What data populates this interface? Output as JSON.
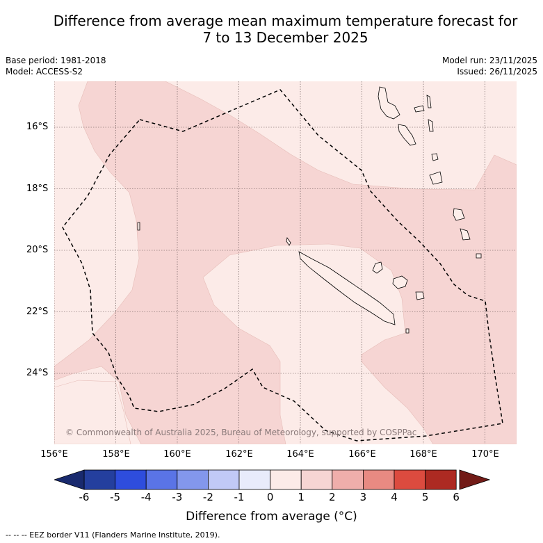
{
  "title_line1": "Difference from average mean maximum temperature forecast for",
  "title_line2": "7 to 13 December 2025",
  "base_period": "Base period: 1981-2018",
  "model": "Model: ACCESS-S2",
  "model_run": "Model run: 23/11/2025",
  "issued": "Issued: 26/11/2025",
  "lat_labels": [
    "16°S",
    "18°S",
    "20°S",
    "22°S",
    "24°S"
  ],
  "lon_labels": [
    "156°E",
    "158°E",
    "160°E",
    "162°E",
    "164°E",
    "166°E",
    "168°E",
    "170°E"
  ],
  "copyright": "© Commonwealth of Australia 2025, Bureau of Meteorology, supported by COSPPac",
  "colorbar": {
    "ticks": [
      "-6",
      "-5",
      "-4",
      "-3",
      "-2",
      "-1",
      "0",
      "1",
      "2",
      "3",
      "4",
      "5",
      "6"
    ],
    "colors": [
      "#243f9e",
      "#2e4ddd",
      "#5a74e6",
      "#8397ec",
      "#c1c9f6",
      "#e8ebfb",
      "#fcebe8",
      "#f6d5d3",
      "#efaeab",
      "#e88a82",
      "#dc4b3f",
      "#ad2a22"
    ],
    "under_color": "#192a6e",
    "over_color": "#721b17",
    "label": "Difference from average (°C)"
  },
  "footnote": "-- -- -- EEZ border V11 (Flanders Marine Institute, 2019).",
  "map_colors": {
    "light": "#fcebe8",
    "medium": "#f6d5d3"
  }
}
